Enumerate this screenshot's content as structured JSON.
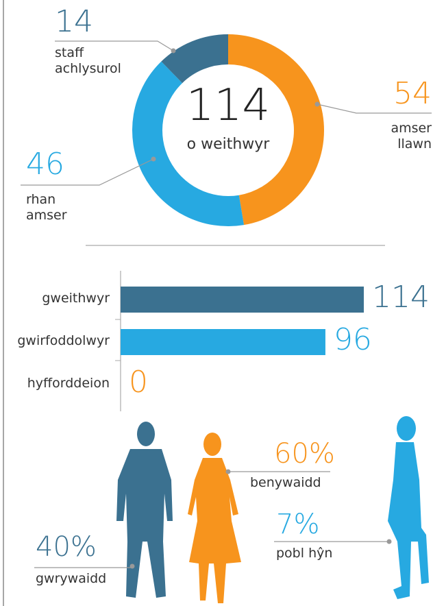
{
  "chart_data": [
    {
      "type": "donut",
      "center_value": 114,
      "center_label": "o weithwyr",
      "categories": [
        "staff achlysurol",
        "amser llawn",
        "rhan amser"
      ],
      "values": [
        14,
        54,
        46
      ],
      "colors": [
        "#3b7190",
        "#f7941d",
        "#27a9e1"
      ]
    },
    {
      "type": "hbar",
      "categories": [
        "gweithwyr",
        "gwirfoddolwyr",
        "hyfforddeion"
      ],
      "values": [
        114,
        96,
        0
      ],
      "colors": [
        "#3b7190",
        "#27a9e1",
        "#f7941d"
      ],
      "xlim": [
        0,
        114
      ]
    },
    {
      "type": "people",
      "categories": [
        "gwrywaidd",
        "benywaidd",
        "pobl hŷn"
      ],
      "values": [
        40,
        60,
        7
      ],
      "value_labels": [
        "40%",
        "60%",
        "7%"
      ],
      "colors": [
        "#3b7190",
        "#f7941d",
        "#27a9e1"
      ]
    }
  ]
}
